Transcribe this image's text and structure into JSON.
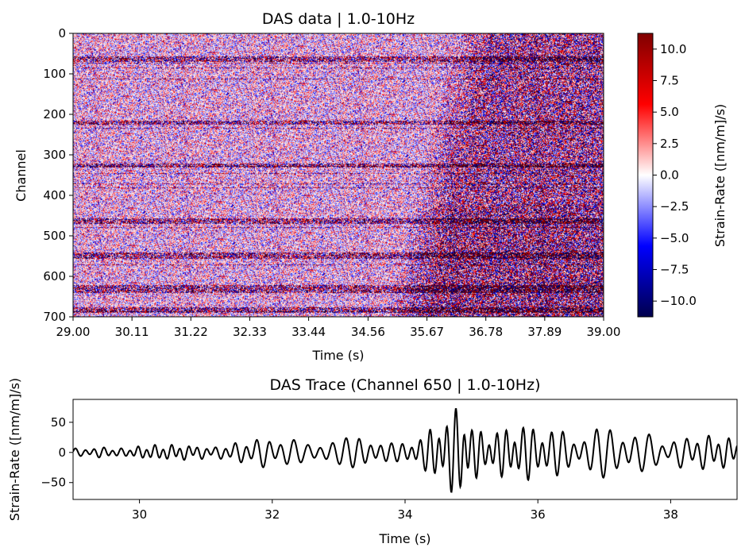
{
  "chart_data": [
    {
      "type": "heatmap",
      "title": "DAS data | 1.0-10Hz",
      "xlabel": "Time (s)",
      "ylabel": "Channel",
      "xlim": [
        29.0,
        39.0
      ],
      "ylim": [
        700,
        0
      ],
      "x_ticks": [
        "29.00",
        "30.11",
        "31.22",
        "32.33",
        "33.44",
        "34.56",
        "35.67",
        "36.78",
        "37.89",
        "39.00"
      ],
      "x_tick_values": [
        29.0,
        30.11,
        31.22,
        32.33,
        33.44,
        34.56,
        35.67,
        36.78,
        37.89,
        39.0
      ],
      "y_ticks": [
        "0",
        "100",
        "200",
        "300",
        "400",
        "500",
        "600",
        "700"
      ],
      "y_tick_values": [
        0,
        100,
        200,
        300,
        400,
        500,
        600,
        700
      ],
      "colormap": "seismic",
      "colors": {
        "low": "#00004d",
        "mid": "#ffffff",
        "high": "#800000"
      },
      "colorbar": {
        "label": "Strain-Rate ([nm/m]/s)",
        "range": [
          -11.25,
          11.25
        ],
        "ticks": [
          "10.0",
          "7.5",
          "5.0",
          "2.5",
          "0.0",
          "−2.5",
          "−5.0",
          "−7.5",
          "−10.0"
        ],
        "tick_values": [
          10.0,
          7.5,
          5.0,
          2.5,
          0.0,
          -2.5,
          -5.0,
          -7.5,
          -10.0
        ]
      },
      "channel_count": 700,
      "noisy_channel_bands": [
        [
          55,
          70
        ],
        [
          215,
          225
        ],
        [
          320,
          330
        ],
        [
          455,
          470
        ],
        [
          540,
          555
        ],
        [
          620,
          640
        ],
        [
          675,
          690
        ]
      ],
      "arrival_onset_time": 35.4,
      "grid": false
    },
    {
      "type": "line",
      "title": "DAS Trace (Channel 650 | 1.0-10Hz)",
      "xlabel": "Time (s)",
      "ylabel": "Strain-Rate ([nm/m]/s)",
      "xlim": [
        29.0,
        39.0
      ],
      "ylim": [
        -78,
        88
      ],
      "x_ticks": [
        "30",
        "32",
        "34",
        "36",
        "38"
      ],
      "x_tick_values": [
        30,
        32,
        34,
        36,
        38
      ],
      "y_ticks": [
        "50",
        "0",
        "−50"
      ],
      "y_tick_values": [
        50,
        0,
        -50
      ],
      "line_color": "#000000",
      "series": [
        {
          "x": [
            29.0,
            29.5,
            30.0,
            30.5,
            31.0,
            31.5,
            32.0,
            32.5,
            33.0,
            33.5,
            34.0,
            34.3,
            34.6,
            34.85,
            35.0,
            35.3,
            35.6,
            36.0,
            36.5,
            37.0,
            37.5,
            38.0,
            38.5,
            39.0
          ],
          "envelope": [
            6,
            10,
            12,
            12,
            14,
            18,
            25,
            28,
            20,
            28,
            22,
            30,
            55,
            82,
            60,
            48,
            45,
            40,
            45,
            42,
            35,
            32,
            28,
            25
          ]
        }
      ],
      "grid": false
    }
  ]
}
